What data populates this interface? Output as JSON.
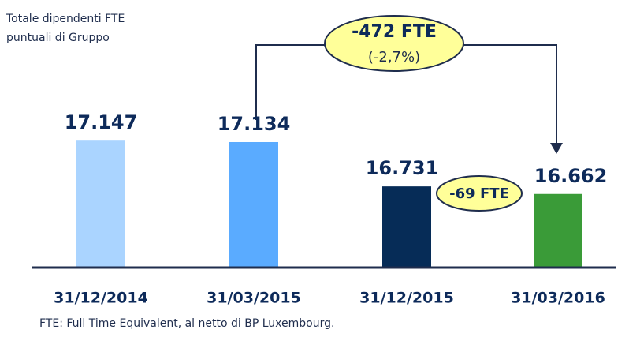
{
  "chart_data": {
    "type": "bar",
    "title_lines": [
      "Totale dipendenti FTE",
      "puntuali di Gruppo"
    ],
    "categories": [
      "31/12/2014",
      "31/03/2015",
      "31/12/2015",
      "31/03/2016"
    ],
    "values": [
      17147,
      17134,
      16731,
      16662
    ],
    "value_labels": [
      "17.147",
      "17.134",
      "16.731",
      "16.662"
    ],
    "colors": [
      "#aad4ff",
      "#5aabff",
      "#062c57",
      "#3a9b38"
    ],
    "ylim": [
      16000,
      17500
    ],
    "annotations": [
      "-472 FTE",
      "(-2,7%)",
      "-69 FTE"
    ],
    "note": "FTE: Full Time Equivalent, al netto di BP Luxembourg."
  }
}
